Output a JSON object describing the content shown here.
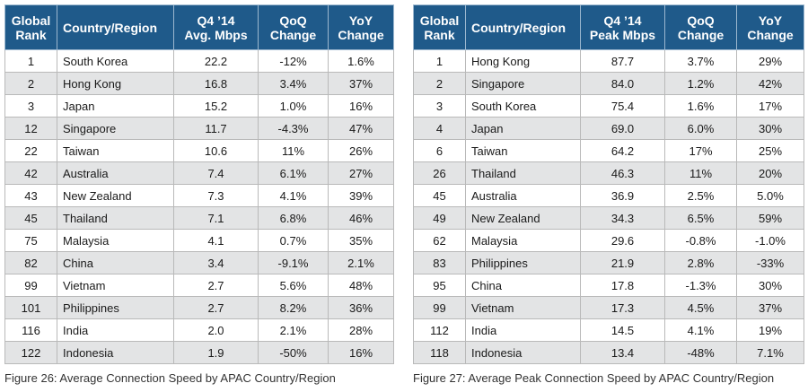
{
  "chart_data": [
    {
      "type": "table",
      "caption": "Figure 26: Average Connection Speed by APAC Country/Region",
      "columns": [
        "Global Rank",
        "Country/Region",
        "Q4 ’14 Avg. Mbps",
        "QoQ Change",
        "YoY Change"
      ],
      "rows": [
        [
          "1",
          "South Korea",
          "22.2",
          "-12%",
          "1.6%"
        ],
        [
          "2",
          "Hong Kong",
          "16.8",
          "3.4%",
          "37%"
        ],
        [
          "3",
          "Japan",
          "15.2",
          "1.0%",
          "16%"
        ],
        [
          "12",
          "Singapore",
          "11.7",
          "-4.3%",
          "47%"
        ],
        [
          "22",
          "Taiwan",
          "10.6",
          "11%",
          "26%"
        ],
        [
          "42",
          "Australia",
          "7.4",
          "6.1%",
          "27%"
        ],
        [
          "43",
          "New Zealand",
          "7.3",
          "4.1%",
          "39%"
        ],
        [
          "45",
          "Thailand",
          "7.1",
          "6.8%",
          "46%"
        ],
        [
          "75",
          "Malaysia",
          "4.1",
          "0.7%",
          "35%"
        ],
        [
          "82",
          "China",
          "3.4",
          "-9.1%",
          "2.1%"
        ],
        [
          "99",
          "Vietnam",
          "2.7",
          "5.6%",
          "48%"
        ],
        [
          "101",
          "Philippines",
          "2.7",
          "8.2%",
          "36%"
        ],
        [
          "116",
          "India",
          "2.0",
          "2.1%",
          "28%"
        ],
        [
          "122",
          "Indonesia",
          "1.9",
          "-50%",
          "16%"
        ]
      ]
    },
    {
      "type": "table",
      "caption": "Figure 27: Average Peak Connection Speed by APAC Country/Region",
      "columns": [
        "Global Rank",
        "Country/Region",
        "Q4 ’14 Peak Mbps",
        "QoQ Change",
        "YoY Change"
      ],
      "rows": [
        [
          "1",
          "Hong Kong",
          "87.7",
          "3.7%",
          "29%"
        ],
        [
          "2",
          "Singapore",
          "84.0",
          "1.2%",
          "42%"
        ],
        [
          "3",
          "South Korea",
          "75.4",
          "1.6%",
          "17%"
        ],
        [
          "4",
          "Japan",
          "69.0",
          "6.0%",
          "30%"
        ],
        [
          "6",
          "Taiwan",
          "64.2",
          "17%",
          "25%"
        ],
        [
          "26",
          "Thailand",
          "46.3",
          "11%",
          "20%"
        ],
        [
          "45",
          "Australia",
          "36.9",
          "2.5%",
          "5.0%"
        ],
        [
          "49",
          "New Zealand",
          "34.3",
          "6.5%",
          "59%"
        ],
        [
          "62",
          "Malaysia",
          "29.6",
          "-0.8%",
          "-1.0%"
        ],
        [
          "83",
          "Philippines",
          "21.9",
          "2.8%",
          "-33%"
        ],
        [
          "95",
          "China",
          "17.8",
          "-1.3%",
          "30%"
        ],
        [
          "99",
          "Vietnam",
          "17.3",
          "4.5%",
          "37%"
        ],
        [
          "112",
          "India",
          "14.5",
          "4.1%",
          "19%"
        ],
        [
          "118",
          "Indonesia",
          "13.4",
          "-48%",
          "7.1%"
        ]
      ]
    }
  ],
  "colors": {
    "header_bg": "#1f5a8a",
    "header_text": "#ffffff",
    "stripe": "#e3e4e5",
    "border": "#b9b9b9"
  }
}
